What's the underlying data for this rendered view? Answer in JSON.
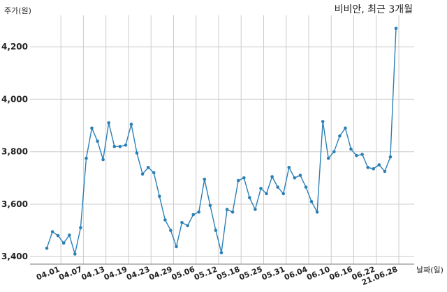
{
  "chart_data": {
    "type": "line",
    "title": "비비안, 최근 3개월",
    "ylabel": "주가(원)",
    "xlabel": "날짜(일)",
    "ylim": [
      3390,
      4320
    ],
    "yticks": [
      3400,
      3600,
      3800,
      4000,
      4200
    ],
    "ytick_labels": [
      "3,400",
      "3,600",
      "3,800",
      "4,000",
      "4,200"
    ],
    "xtick_labels": [
      "04.01",
      "04.07",
      "04.13",
      "04.19",
      "04.23",
      "04.29",
      "05.06",
      "05.12",
      "05.18",
      "05.25",
      "05.31",
      "06.04",
      "06.10",
      "06.16",
      "06.22",
      "21.06.28"
    ],
    "xtick_positions": [
      2.5,
      6.5,
      10.5,
      14.5,
      18.5,
      22.5,
      26.5,
      30.5,
      34.5,
      38.5,
      42.5,
      46.5,
      50.5,
      54.5,
      58.5,
      62.5
    ],
    "grid": true,
    "color": "#2b7fb5",
    "series": [
      {
        "values": [
          3432,
          3495,
          3480,
          3452,
          3482,
          3410,
          3510,
          3775,
          3890,
          3840,
          3770,
          3910,
          3820,
          3820,
          3825,
          3905,
          3795,
          3715,
          3740,
          3720,
          3630,
          3540,
          3500,
          3438,
          3530,
          3518,
          3560,
          3570,
          3695,
          3595,
          3500,
          3415,
          3580,
          3570,
          3690,
          3700,
          3625,
          3580,
          3660,
          3640,
          3705,
          3665,
          3640,
          3740,
          3700,
          3710,
          3665,
          3610,
          3570,
          3915,
          3775,
          3800,
          3860,
          3890,
          3810,
          3785,
          3790,
          3740,
          3735,
          3750,
          3725,
          3780,
          4270
        ]
      }
    ]
  }
}
